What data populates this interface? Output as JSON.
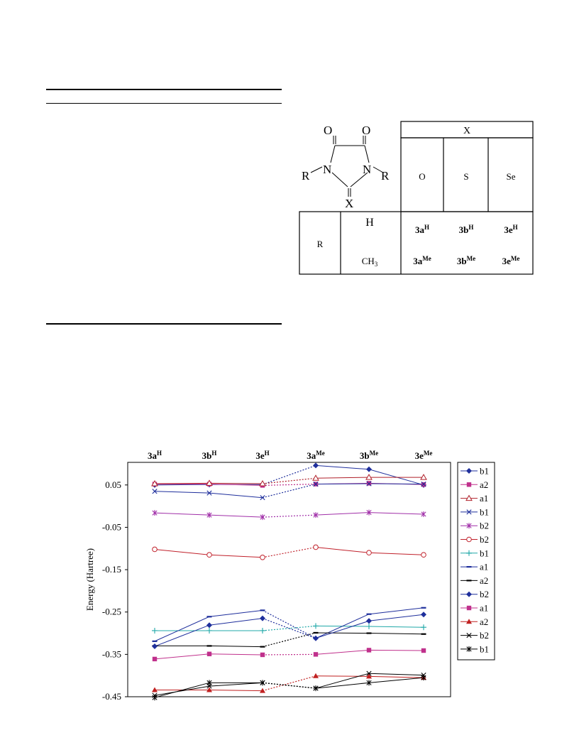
{
  "structure": {
    "o_left": "O",
    "o_right": "O",
    "n_left": "N",
    "n_right": "N",
    "r_left": "R",
    "r_right": "R",
    "x_label": "X"
  },
  "table": {
    "x_header": "X",
    "x_values": [
      "O",
      "S",
      "Se"
    ],
    "r_header": "R",
    "r_values": [
      "H",
      "CH3"
    ],
    "rows": [
      [
        {
          "base": "3a",
          "sup": "H"
        },
        {
          "base": "3b",
          "sup": "H"
        },
        {
          "base": "3e",
          "sup": "H"
        }
      ],
      [
        {
          "base": "3a",
          "sup": "Me"
        },
        {
          "base": "3b",
          "sup": "Me"
        },
        {
          "base": "3e",
          "sup": "Me"
        }
      ]
    ]
  },
  "chart_data": {
    "type": "line",
    "ylabel": "Energy (Hartree)",
    "ylim": [
      -0.45,
      0.1
    ],
    "yticks": [
      0.05,
      -0.05,
      -0.15,
      -0.25,
      -0.35,
      -0.45
    ],
    "categories": [
      {
        "base": "3a",
        "sup": "H"
      },
      {
        "base": "3b",
        "sup": "H"
      },
      {
        "base": "3e",
        "sup": "H"
      },
      {
        "base": "3a",
        "sup": "Me"
      },
      {
        "base": "3b",
        "sup": "Me"
      },
      {
        "base": "3e",
        "sup": "Me"
      }
    ],
    "legend_position": "right",
    "series": [
      {
        "name": "b1",
        "color": "#1f2f9c",
        "marker": "diamond",
        "values": [
          0.05,
          0.051,
          0.051,
          0.096,
          0.087,
          0.05
        ]
      },
      {
        "name": "a2",
        "color": "#c0308c",
        "marker": "square",
        "values": [
          0.052,
          0.052,
          0.049,
          0.052,
          0.054,
          0.051
        ]
      },
      {
        "name": "a1",
        "color": "#b0202a",
        "marker": "triangle-open",
        "values": [
          0.053,
          0.054,
          0.053,
          0.066,
          0.068,
          0.068
        ]
      },
      {
        "name": "b1",
        "color": "#1f2f9c",
        "marker": "x",
        "values": [
          0.035,
          0.031,
          0.02,
          0.052,
          0.053,
          0.052
        ]
      },
      {
        "name": "b2",
        "color": "#a02fa8",
        "marker": "asterisk",
        "values": [
          -0.016,
          -0.021,
          -0.026,
          -0.021,
          -0.015,
          -0.019
        ]
      },
      {
        "name": "b2",
        "color": "#c0202a",
        "marker": "circle-open",
        "values": [
          -0.102,
          -0.115,
          -0.121,
          -0.097,
          -0.11,
          -0.115
        ]
      },
      {
        "name": "b1",
        "color": "#20a8a8",
        "marker": "plus",
        "values": [
          -0.294,
          -0.294,
          -0.294,
          -0.283,
          -0.284,
          -0.286
        ]
      },
      {
        "name": "a1",
        "color": "#1f2f9c",
        "marker": "dash",
        "values": [
          -0.319,
          -0.261,
          -0.246,
          -0.312,
          -0.255,
          -0.24
        ]
      },
      {
        "name": "a2",
        "color": "#000000",
        "marker": "dash",
        "values": [
          -0.33,
          -0.33,
          -0.332,
          -0.299,
          -0.3,
          -0.302
        ]
      },
      {
        "name": "b2",
        "color": "#1f2f9c",
        "marker": "diamond",
        "values": [
          -0.331,
          -0.281,
          -0.265,
          -0.312,
          -0.271,
          -0.256
        ]
      },
      {
        "name": "a1",
        "color": "#c0308c",
        "marker": "square",
        "values": [
          -0.361,
          -0.349,
          -0.351,
          -0.35,
          -0.34,
          -0.341
        ]
      },
      {
        "name": "a2",
        "color": "#c02020",
        "marker": "triangle",
        "values": [
          -0.434,
          -0.434,
          -0.436,
          -0.401,
          -0.402,
          -0.405
        ]
      },
      {
        "name": "b2",
        "color": "#000000",
        "marker": "x",
        "values": [
          -0.447,
          -0.425,
          -0.417,
          -0.43,
          -0.395,
          -0.399
        ]
      },
      {
        "name": "b1",
        "color": "#000000",
        "marker": "asterisk",
        "values": [
          -0.452,
          -0.417,
          -0.417,
          -0.43,
          -0.417,
          -0.405
        ]
      }
    ]
  }
}
